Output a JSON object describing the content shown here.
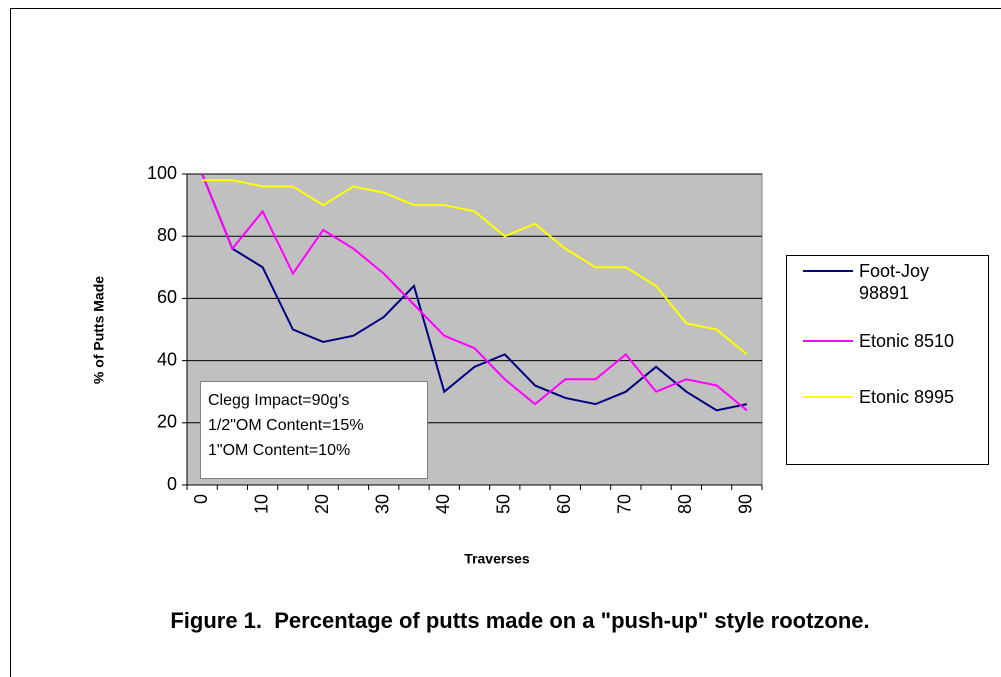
{
  "chart_data": {
    "type": "line",
    "title": "Figure 1.  Percentage of putts made on a \"push-up\" style rootzone.",
    "xlabel": "Traverses",
    "ylabel": "% of Putts Made",
    "categories": [
      "0",
      null,
      "10",
      null,
      "20",
      null,
      "30",
      null,
      "40",
      null,
      "50",
      null,
      "60",
      null,
      "70",
      null,
      "80",
      null,
      "90"
    ],
    "series": [
      {
        "name": "Foot-Joy 98891",
        "color": "#000080",
        "values": [
          100,
          76,
          70,
          50,
          46,
          48,
          54,
          64,
          30,
          38,
          42,
          32,
          28,
          26,
          30,
          38,
          30,
          24,
          26
        ]
      },
      {
        "name": "Etonic 8510",
        "color": "#ff00ff",
        "values": [
          100,
          76,
          88,
          68,
          82,
          76,
          68,
          58,
          48,
          44,
          34,
          26,
          34,
          34,
          42,
          30,
          34,
          32,
          24
        ]
      },
      {
        "name": "Etonic 8995",
        "color": "#ffff00",
        "values": [
          98,
          98,
          96,
          96,
          90,
          96,
          94,
          90,
          90,
          88,
          80,
          84,
          76,
          70,
          70,
          64,
          52,
          50,
          42
        ]
      }
    ],
    "ylim": [
      0,
      100
    ],
    "yticks": [
      0,
      20,
      40,
      60,
      80,
      100
    ],
    "grid": true,
    "annotations": [
      "Clegg Impact=90g's",
      "1/2\"OM Content=15%",
      "1\"OM Content=10%"
    ],
    "legend": "right"
  }
}
